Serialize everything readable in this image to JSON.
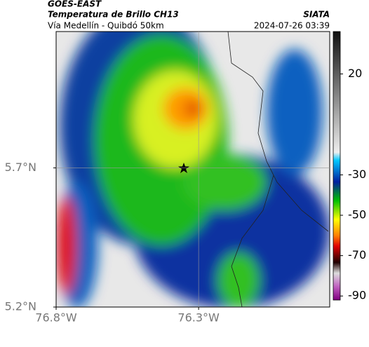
{
  "header": {
    "source": "GOES-EAST",
    "product": "Temperatura de Brillo CH13",
    "agency": "SIATA",
    "route": "Vía Medellín - Quibdó 50km",
    "timestamp": "2024-07-26 03:39"
  },
  "map": {
    "xlim": [
      -76.8,
      -75.84
    ],
    "ylim": [
      5.2,
      6.19
    ],
    "xticks": [
      {
        "value": -76.8,
        "label": "76.8°W"
      },
      {
        "value": -76.3,
        "label": "76.3°W"
      }
    ],
    "yticks": [
      {
        "value": 5.2,
        "label": "5.2°N"
      },
      {
        "value": 5.7,
        "label": "5.7°N"
      }
    ],
    "grid": true
  },
  "colorbar": {
    "lim": [
      -92,
      41
    ],
    "ticks": [
      20,
      -30,
      -50,
      -70,
      -90
    ]
  }
}
